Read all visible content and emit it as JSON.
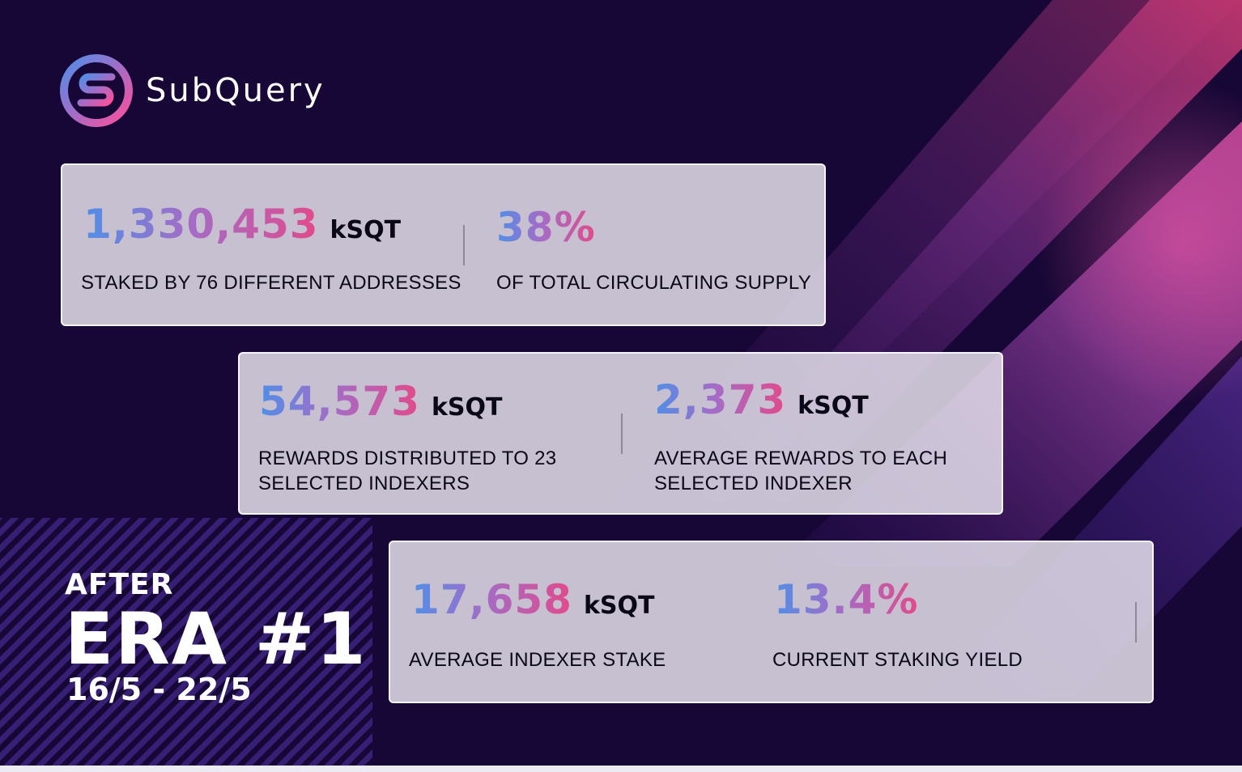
{
  "brand": {
    "name": "SubQuery",
    "logo_icon": "subquery-logo-icon"
  },
  "colors": {
    "background": "#170736",
    "accent_blue": "#4f8fe8",
    "accent_purple": "#a46cc7",
    "accent_pink": "#e24a8b"
  },
  "cards": [
    {
      "stats": [
        {
          "value": "1,330,453",
          "unit": "kSQT",
          "label": "STAKED BY 76 DIFFERENT ADDRESSES"
        },
        {
          "value": "38%",
          "unit": "",
          "label": "OF TOTAL CIRCULATING SUPPLY"
        }
      ]
    },
    {
      "stats": [
        {
          "value": "54,573",
          "unit": "kSQT",
          "label": "REWARDS DISTRIBUTED TO 23\nSELECTED INDEXERS"
        },
        {
          "value": "2,373",
          "unit": "kSQT",
          "label": "AVERAGE REWARDS TO EACH\nSELECTED INDEXER"
        }
      ]
    },
    {
      "stats": [
        {
          "value": "17,658",
          "unit": "kSQT",
          "label": "AVERAGE INDEXER STAKE"
        },
        {
          "value": "13.4%",
          "unit": "",
          "label": "CURRENT STAKING YIELD"
        }
      ]
    }
  ],
  "era": {
    "prefix": "AFTER",
    "title": "ERA #1",
    "dates": "16/5 - 22/5"
  }
}
